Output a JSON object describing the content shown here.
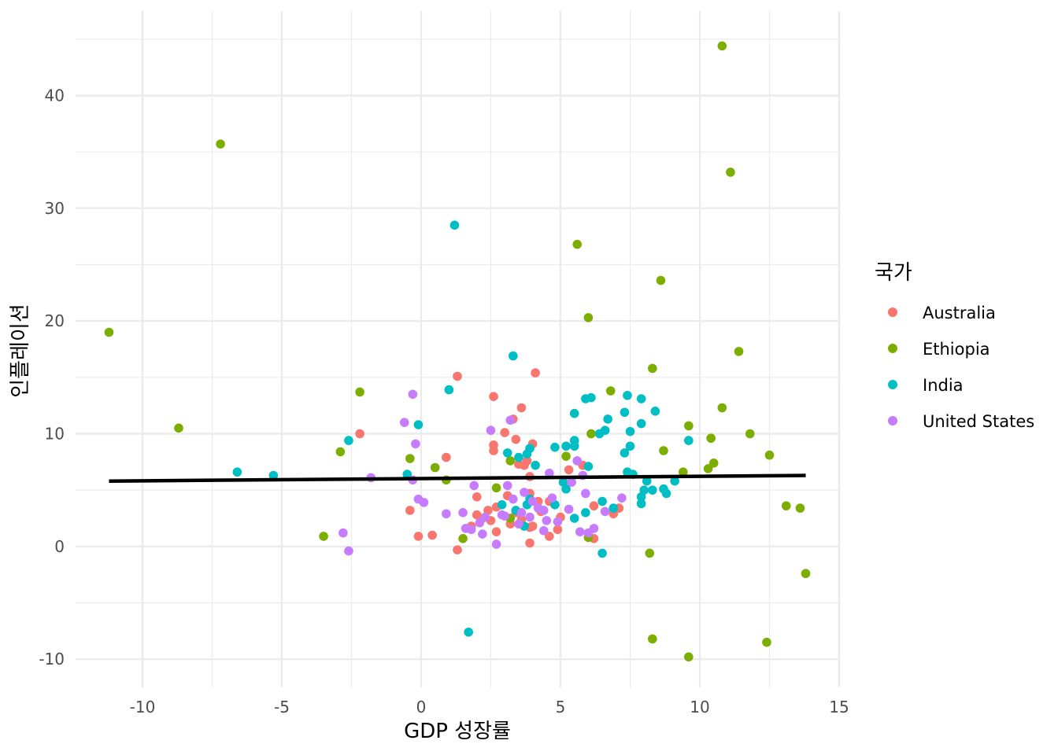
{
  "chart_data": {
    "type": "scatter",
    "title": "",
    "xlabel": "GDP 성장률",
    "ylabel": "인플레이션",
    "xlim": [
      -12.4,
      15.0
    ],
    "ylim": [
      -12.5,
      47.5
    ],
    "x_ticks": [
      -10,
      -5,
      0,
      5,
      10,
      15
    ],
    "y_ticks": [
      -10,
      0,
      10,
      20,
      30,
      40
    ],
    "x_tick_labels": [
      "-10",
      "-5",
      "0",
      "5",
      "10",
      "15"
    ],
    "y_tick_labels": [
      "-10",
      "0",
      "10",
      "20",
      "30",
      "40"
    ],
    "grid": true,
    "legend_title": "국가",
    "legend_position": "right",
    "series": [
      {
        "name": "Australia",
        "color": "#F8766D",
        "points": [
          [
            1.3,
            15.1
          ],
          [
            4.1,
            15.4
          ],
          [
            2.6,
            13.3
          ],
          [
            3.6,
            12.3
          ],
          [
            3.3,
            11.3
          ],
          [
            -2.2,
            10.0
          ],
          [
            3.0,
            10.1
          ],
          [
            3.4,
            9.5
          ],
          [
            4.0,
            9.1
          ],
          [
            2.6,
            9.0
          ],
          [
            2.6,
            8.5
          ],
          [
            0.9,
            7.9
          ],
          [
            5.3,
            6.8
          ],
          [
            3.8,
            7.6
          ],
          [
            5.8,
            7.2
          ],
          [
            3.7,
            7.2
          ],
          [
            3.5,
            7.3
          ],
          [
            3.9,
            6.2
          ],
          [
            2.0,
            4.4
          ],
          [
            3.1,
            4.5
          ],
          [
            3.9,
            4.7
          ],
          [
            4.2,
            4.0
          ],
          [
            4.6,
            4.0
          ],
          [
            6.2,
            3.6
          ],
          [
            7.1,
            3.4
          ],
          [
            6.9,
            2.9
          ],
          [
            2.7,
            3.5
          ],
          [
            3.4,
            3.0
          ],
          [
            2.4,
            3.2
          ],
          [
            2.0,
            2.8
          ],
          [
            4.3,
            3.1
          ],
          [
            -0.4,
            3.2
          ],
          [
            2.2,
            2.5
          ],
          [
            3.6,
            2.4
          ],
          [
            5.0,
            2.6
          ],
          [
            4.0,
            1.8
          ],
          [
            1.8,
            1.8
          ],
          [
            3.9,
            1.7
          ],
          [
            4.9,
            1.5
          ],
          [
            2.7,
            1.3
          ],
          [
            0.4,
            1.0
          ],
          [
            -0.1,
            0.9
          ],
          [
            4.6,
            0.9
          ],
          [
            6.2,
            0.7
          ],
          [
            3.9,
            0.3
          ],
          [
            1.3,
            -0.3
          ],
          [
            2.5,
            2.3
          ],
          [
            3.2,
            2.0
          ]
        ]
      },
      {
        "name": "Ethiopia",
        "color": "#7CAE00",
        "points": [
          [
            10.8,
            44.4
          ],
          [
            -7.2,
            35.7
          ],
          [
            11.1,
            33.2
          ],
          [
            5.6,
            26.8
          ],
          [
            8.6,
            23.6
          ],
          [
            6.0,
            20.3
          ],
          [
            -11.2,
            19.0
          ],
          [
            11.4,
            17.3
          ],
          [
            8.3,
            15.8
          ],
          [
            -2.2,
            13.7
          ],
          [
            6.8,
            13.8
          ],
          [
            10.8,
            12.3
          ],
          [
            -8.7,
            10.5
          ],
          [
            9.6,
            10.7
          ],
          [
            6.1,
            10.0
          ],
          [
            11.8,
            10.0
          ],
          [
            10.4,
            9.6
          ],
          [
            8.7,
            8.5
          ],
          [
            -2.9,
            8.4
          ],
          [
            -0.4,
            7.8
          ],
          [
            5.2,
            8.0
          ],
          [
            3.2,
            7.6
          ],
          [
            10.5,
            7.4
          ],
          [
            12.5,
            8.1
          ],
          [
            0.5,
            7.0
          ],
          [
            10.3,
            6.9
          ],
          [
            9.4,
            6.6
          ],
          [
            0.9,
            5.9
          ],
          [
            2.7,
            5.2
          ],
          [
            13.1,
            3.6
          ],
          [
            13.6,
            3.4
          ],
          [
            3.2,
            2.5
          ],
          [
            6.0,
            0.8
          ],
          [
            -3.5,
            0.9
          ],
          [
            1.5,
            0.7
          ],
          [
            8.2,
            -0.6
          ],
          [
            13.8,
            -2.4
          ],
          [
            8.3,
            -8.2
          ],
          [
            12.4,
            -8.5
          ],
          [
            9.6,
            -9.8
          ]
        ]
      },
      {
        "name": "India",
        "color": "#00BFC4",
        "points": [
          [
            1.2,
            28.5
          ],
          [
            3.3,
            16.9
          ],
          [
            1.0,
            13.9
          ],
          [
            7.4,
            13.4
          ],
          [
            7.9,
            13.1
          ],
          [
            5.9,
            13.1
          ],
          [
            6.1,
            13.2
          ],
          [
            7.3,
            11.9
          ],
          [
            8.4,
            12.0
          ],
          [
            5.5,
            11.8
          ],
          [
            6.7,
            11.3
          ],
          [
            -0.1,
            10.8
          ],
          [
            7.9,
            10.9
          ],
          [
            7.5,
            10.2
          ],
          [
            6.4,
            10.0
          ],
          [
            6.6,
            10.3
          ],
          [
            -2.6,
            9.4
          ],
          [
            5.5,
            9.4
          ],
          [
            9.6,
            9.4
          ],
          [
            4.8,
            8.8
          ],
          [
            5.2,
            8.9
          ],
          [
            5.5,
            8.9
          ],
          [
            7.5,
            8.9
          ],
          [
            7.3,
            8.3
          ],
          [
            3.9,
            8.7
          ],
          [
            3.1,
            8.3
          ],
          [
            3.8,
            8.2
          ],
          [
            3.5,
            7.9
          ],
          [
            6.0,
            7.1
          ],
          [
            4.1,
            7.2
          ],
          [
            -6.6,
            6.6
          ],
          [
            -5.3,
            6.3
          ],
          [
            -0.5,
            6.4
          ],
          [
            7.4,
            6.6
          ],
          [
            7.6,
            6.4
          ],
          [
            5.1,
            5.7
          ],
          [
            5.2,
            5.1
          ],
          [
            8.1,
            5.8
          ],
          [
            9.1,
            5.8
          ],
          [
            8.0,
            5.0
          ],
          [
            8.3,
            5.0
          ],
          [
            8.7,
            5.1
          ],
          [
            8.8,
            4.7
          ],
          [
            7.9,
            4.4
          ],
          [
            6.5,
            4.0
          ],
          [
            7.9,
            3.8
          ],
          [
            4.8,
            3.7
          ],
          [
            3.4,
            3.2
          ],
          [
            2.9,
            3.7
          ],
          [
            3.8,
            3.7
          ],
          [
            3.9,
            4.2
          ],
          [
            5.9,
            3.0
          ],
          [
            6.9,
            3.4
          ],
          [
            5.5,
            2.5
          ],
          [
            3.7,
            1.8
          ],
          [
            6.5,
            -0.6
          ],
          [
            1.7,
            -7.6
          ]
        ]
      },
      {
        "name": "United States",
        "color": "#C77CFF",
        "points": [
          [
            -0.3,
            13.5
          ],
          [
            3.2,
            11.2
          ],
          [
            2.5,
            10.3
          ],
          [
            -0.6,
            11.0
          ],
          [
            -0.2,
            9.1
          ],
          [
            5.6,
            7.6
          ],
          [
            5.8,
            6.3
          ],
          [
            4.6,
            6.5
          ],
          [
            -1.8,
            6.1
          ],
          [
            -0.3,
            5.9
          ],
          [
            1.9,
            5.4
          ],
          [
            3.1,
            5.4
          ],
          [
            5.4,
            5.7
          ],
          [
            3.7,
            4.8
          ],
          [
            5.9,
            4.7
          ],
          [
            4.0,
            4.0
          ],
          [
            7.2,
            4.3
          ],
          [
            3.3,
            4.2
          ],
          [
            -0.1,
            4.2
          ],
          [
            0.1,
            3.9
          ],
          [
            4.4,
            3.2
          ],
          [
            4.7,
            4.3
          ],
          [
            5.3,
            3.3
          ],
          [
            6.6,
            3.1
          ],
          [
            1.5,
            3.0
          ],
          [
            0.9,
            2.9
          ],
          [
            2.3,
            2.6
          ],
          [
            3.0,
            2.7
          ],
          [
            3.9,
            2.6
          ],
          [
            4.5,
            2.3
          ],
          [
            4.9,
            2.2
          ],
          [
            3.5,
            2.0
          ],
          [
            1.6,
            1.6
          ],
          [
            1.8,
            1.5
          ],
          [
            2.2,
            1.1
          ],
          [
            4.4,
            1.4
          ],
          [
            5.7,
            1.3
          ],
          [
            6.0,
            1.2
          ],
          [
            6.2,
            1.6
          ],
          [
            -2.8,
            1.2
          ],
          [
            -2.6,
            -0.4
          ],
          [
            2.7,
            0.2
          ],
          [
            2.1,
            2.1
          ],
          [
            3.6,
            3.0
          ],
          [
            4.2,
            3.4
          ],
          [
            2.9,
            2.8
          ]
        ]
      }
    ],
    "trend_line": {
      "color": "#000000",
      "x": [
        -11.2,
        13.8
      ],
      "y": [
        5.8,
        6.3
      ]
    }
  }
}
